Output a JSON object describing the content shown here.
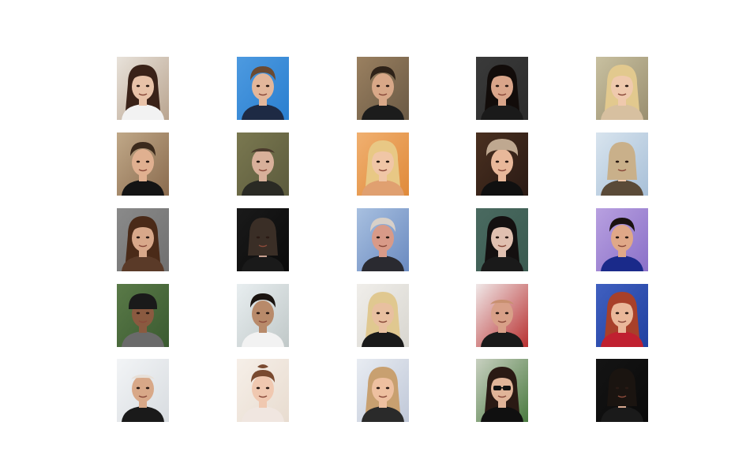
{
  "figure": {
    "rows": 5,
    "cols": 5,
    "tiles": [
      {
        "bg": "#b9a48f",
        "bg2": "#e8e2da",
        "skin": "#e8c2a8",
        "hair": "#3a2218",
        "cloth": "#f2f2f2",
        "hairstyle": "long"
      },
      {
        "bg": "#2a7fd0",
        "bg2": "#4d9ae0",
        "skin": "#e3b79b",
        "hair": "#6b4a32",
        "cloth": "#1e2a44",
        "hairstyle": "short"
      },
      {
        "bg": "#6b5a45",
        "bg2": "#9a8060",
        "skin": "#d8a888",
        "hair": "#2e2218",
        "cloth": "#1c1c1c",
        "hairstyle": "short"
      },
      {
        "bg": "#2b2b2b",
        "bg2": "#3a3a3a",
        "skin": "#d9a58a",
        "hair": "#120c0a",
        "cloth": "#1a1a1a",
        "hairstyle": "long"
      },
      {
        "bg": "#9a8f70",
        "bg2": "#c8c0a0",
        "skin": "#efc9ad",
        "hair": "#e2c98e",
        "cloth": "#d7c0a0",
        "hairstyle": "long"
      },
      {
        "bg": "#8a6b4e",
        "bg2": "#c0a888",
        "skin": "#e0b090",
        "hair": "#3b2a1c",
        "cloth": "#141414",
        "hairstyle": "short"
      },
      {
        "bg": "#5c5b3d",
        "bg2": "#7a7850",
        "skin": "#d8b09a",
        "hair": "#4a3a2c",
        "cloth": "#2a2a24",
        "hairstyle": "bald"
      },
      {
        "bg": "#e08a3a",
        "bg2": "#f0b070",
        "skin": "#f0c6a6",
        "hair": "#e8c885",
        "cloth": "#e0a070",
        "hairstyle": "long"
      },
      {
        "bg": "#2a1a14",
        "bg2": "#4a3020",
        "skin": "#e8b89a",
        "hair": "#bfa890",
        "cloth": "#101010",
        "hairstyle": "curly"
      },
      {
        "bg": "#a8c0d8",
        "bg2": "#d8e4ee",
        "skin": "#f0c8aa",
        "hair": "#c9b08a",
        "cloth": "#5a4a38",
        "hairstyle": "medium"
      },
      {
        "bg": "#707070",
        "bg2": "#8a8a8a",
        "skin": "#d8a88a",
        "hair": "#4a2a18",
        "cloth": "#5a3a28",
        "hairstyle": "long"
      },
      {
        "bg": "#0a0a0a",
        "bg2": "#1a1a1a",
        "skin": "#c8a090",
        "hair": "#3a2e26",
        "cloth": "#1a1a1a",
        "hairstyle": "medium"
      },
      {
        "bg": "#6a8ac0",
        "bg2": "#a8c0e0",
        "skin": "#d89a88",
        "hair": "#d8d0c8",
        "cloth": "#2a2a30",
        "hairstyle": "short"
      },
      {
        "bg": "#3a5a50",
        "bg2": "#4a6a60",
        "skin": "#e0c0b0",
        "hair": "#141010",
        "cloth": "#1a1a1a",
        "hairstyle": "long"
      },
      {
        "bg": "#8a70c8",
        "bg2": "#b8a0e0",
        "skin": "#e0a888",
        "hair": "#1a1210",
        "cloth": "#1a2a8a",
        "hairstyle": "short"
      },
      {
        "bg": "#3a5a30",
        "bg2": "#5a7a48",
        "skin": "#8a5a40",
        "hair": "#1a1a1a",
        "cloth": "#6a6a6a",
        "hairstyle": "cap"
      },
      {
        "bg": "#c0c8c8",
        "bg2": "#e8eef0",
        "skin": "#b88a6a",
        "hair": "#1a1410",
        "cloth": "#f2f2f2",
        "hairstyle": "short"
      },
      {
        "bg": "#d8d6d0",
        "bg2": "#f0eeea",
        "skin": "#e8c0a0",
        "hair": "#e0c890",
        "cloth": "#1a1a1a",
        "hairstyle": "long"
      },
      {
        "bg": "#b83030",
        "bg2": "#f0e8e8",
        "skin": "#d8a088",
        "hair": "#c89070",
        "cloth": "#1a1a1a",
        "hairstyle": "bald"
      },
      {
        "bg": "#2040a0",
        "bg2": "#4060c0",
        "skin": "#eab89a",
        "hair": "#a8402a",
        "cloth": "#c02030",
        "hairstyle": "long"
      },
      {
        "bg": "#d8dce0",
        "bg2": "#f2f4f6",
        "skin": "#d8a888",
        "hair": "#e8e0d8",
        "cloth": "#1a1a1a",
        "hairstyle": "bald"
      },
      {
        "bg": "#e8dcd0",
        "bg2": "#f6efe8",
        "skin": "#f0c8b0",
        "hair": "#7a4a30",
        "cloth": "#f0e6e0",
        "hairstyle": "bun"
      },
      {
        "bg": "#c0c8d8",
        "bg2": "#e8ecf2",
        "skin": "#eec0a0",
        "hair": "#c8a070",
        "cloth": "#2a2a2a",
        "hairstyle": "long"
      },
      {
        "bg": "#4a7a40",
        "bg2": "#c8d0c0",
        "skin": "#e0b498",
        "hair": "#2a1a14",
        "cloth": "#101010",
        "hairstyle": "sunglasses"
      },
      {
        "bg": "#0a0a0a",
        "bg2": "#141414",
        "skin": "#d8a890",
        "hair": "#1a1410",
        "cloth": "#1a1a1a",
        "hairstyle": "medium"
      }
    ]
  }
}
